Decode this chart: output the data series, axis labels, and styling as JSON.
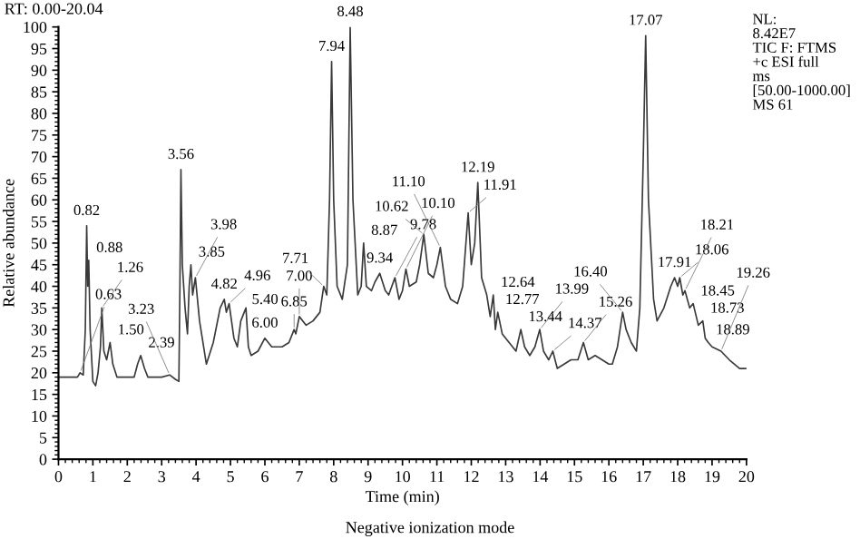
{
  "chart_data": {
    "type": "line",
    "xlabel": "Time (min)",
    "ylabel": "Relative abundance",
    "xlim": [
      0,
      20
    ],
    "ylim": [
      0,
      100
    ],
    "xticks": [
      0,
      1,
      2,
      3,
      4,
      5,
      6,
      7,
      8,
      9,
      10,
      11,
      12,
      13,
      14,
      15,
      16,
      17,
      18,
      19,
      20
    ],
    "yticks": [
      0,
      5,
      10,
      15,
      20,
      25,
      30,
      35,
      40,
      45,
      50,
      55,
      60,
      65,
      70,
      75,
      80,
      85,
      90,
      95,
      100
    ],
    "grid": false,
    "legend": false,
    "marker": "none",
    "line_style": "solid",
    "series": [
      {
        "color": "#3a3a3a",
        "x": [
          0,
          0.3,
          0.55,
          0.63,
          0.72,
          0.78,
          0.82,
          0.85,
          0.88,
          0.92,
          1.0,
          1.08,
          1.15,
          1.22,
          1.26,
          1.32,
          1.4,
          1.5,
          1.58,
          1.7,
          2.0,
          2.2,
          2.3,
          2.39,
          2.5,
          2.6,
          2.8,
          3.0,
          3.23,
          3.4,
          3.5,
          3.53,
          3.56,
          3.6,
          3.68,
          3.75,
          3.8,
          3.85,
          3.9,
          3.98,
          4.1,
          4.3,
          4.5,
          4.7,
          4.82,
          4.88,
          4.96,
          5.1,
          5.2,
          5.3,
          5.4,
          5.45,
          5.52,
          5.6,
          5.8,
          6.0,
          6.2,
          6.5,
          6.7,
          6.85,
          6.9,
          7.0,
          7.2,
          7.4,
          7.6,
          7.71,
          7.8,
          7.88,
          7.94,
          8.0,
          8.1,
          8.25,
          8.4,
          8.48,
          8.56,
          8.7,
          8.8,
          8.87,
          8.95,
          9.1,
          9.2,
          9.34,
          9.5,
          9.6,
          9.78,
          9.9,
          10.0,
          10.1,
          10.2,
          10.4,
          10.5,
          10.62,
          10.75,
          10.9,
          11.0,
          11.1,
          11.25,
          11.4,
          11.6,
          11.75,
          11.91,
          12.0,
          12.1,
          12.19,
          12.3,
          12.45,
          12.55,
          12.64,
          12.7,
          12.77,
          12.9,
          13.1,
          13.3,
          13.44,
          13.55,
          13.7,
          13.85,
          13.99,
          14.1,
          14.25,
          14.37,
          14.5,
          14.7,
          14.9,
          15.1,
          15.26,
          15.4,
          15.6,
          15.8,
          16.0,
          16.1,
          16.25,
          16.4,
          16.5,
          16.65,
          16.8,
          16.9,
          17.0,
          17.07,
          17.15,
          17.3,
          17.4,
          17.6,
          17.8,
          17.91,
          18.0,
          18.06,
          18.15,
          18.21,
          18.35,
          18.45,
          18.6,
          18.73,
          18.8,
          18.89,
          19.0,
          19.26,
          19.5,
          19.8,
          20.0
        ],
        "values": [
          19,
          19,
          19,
          20,
          19.5,
          30,
          54,
          40,
          46,
          30,
          18,
          17,
          20,
          26,
          35,
          25,
          23,
          27,
          22,
          19,
          19,
          19,
          22,
          24,
          21,
          19,
          19,
          19,
          19.5,
          18.5,
          18,
          40,
          67,
          45,
          35,
          29,
          40,
          45,
          38,
          42,
          32,
          22,
          27,
          35,
          37,
          34,
          36,
          28,
          26,
          32,
          34,
          35,
          26,
          24,
          25,
          28,
          26,
          26,
          27,
          30,
          29,
          33,
          31,
          32,
          34,
          40,
          38,
          60,
          92,
          60,
          40,
          37,
          45,
          100,
          60,
          38,
          40,
          50,
          40,
          39,
          41,
          43,
          39,
          38,
          42,
          37,
          39,
          44,
          40,
          41,
          45,
          52,
          43,
          42,
          45,
          49,
          40,
          37,
          36,
          40,
          57,
          45,
          50,
          64,
          42,
          38,
          33,
          38,
          30,
          34,
          29,
          27,
          25,
          30,
          26,
          24,
          26,
          30,
          25,
          23,
          25,
          21,
          22,
          23,
          23,
          27,
          23,
          24,
          23,
          22,
          22,
          26,
          34,
          30,
          27,
          25,
          35,
          70,
          98,
          60,
          37,
          32,
          35,
          40,
          42,
          40,
          42,
          38,
          39,
          35,
          36,
          31,
          32,
          28,
          27,
          26,
          25,
          23,
          21,
          21
        ]
      }
    ],
    "annotations": [
      "RT: 0.00-20.04",
      "NL:\n8.42E7\nTIC F: FTMS\n+c ESI full\nms\n[50.00-1000.00]\nMS 61",
      "Negative ionization mode",
      {
        "text": "0.63",
        "x": 0.63,
        "y": 20
      },
      {
        "text": "0.82",
        "x": 0.82,
        "y": 54
      },
      {
        "text": "0.88",
        "x": 0.88,
        "y": 46
      },
      {
        "text": "1.26",
        "x": 1.26,
        "y": 35
      },
      {
        "text": "1.50",
        "x": 1.5,
        "y": 27
      },
      {
        "text": "2.39",
        "x": 2.39,
        "y": 24
      },
      {
        "text": "3.23",
        "x": 3.23,
        "y": 19.5
      },
      {
        "text": "3.56",
        "x": 3.56,
        "y": 67
      },
      {
        "text": "3.85",
        "x": 3.85,
        "y": 45
      },
      {
        "text": "3.98",
        "x": 3.98,
        "y": 42
      },
      {
        "text": "4.82",
        "x": 4.82,
        "y": 37
      },
      {
        "text": "4.96",
        "x": 4.96,
        "y": 36
      },
      {
        "text": "5.40",
        "x": 5.4,
        "y": 34
      },
      {
        "text": "6.00",
        "x": 6.0,
        "y": 28
      },
      {
        "text": "6.85",
        "x": 6.85,
        "y": 30
      },
      {
        "text": "7.00",
        "x": 7.0,
        "y": 33
      },
      {
        "text": "7.71",
        "x": 7.71,
        "y": 40
      },
      {
        "text": "7.94",
        "x": 7.94,
        "y": 92
      },
      {
        "text": "8.48",
        "x": 8.48,
        "y": 100
      },
      {
        "text": "8.87",
        "x": 8.87,
        "y": 50
      },
      {
        "text": "9.34",
        "x": 9.34,
        "y": 43
      },
      {
        "text": "9.78",
        "x": 9.78,
        "y": 42
      },
      {
        "text": "10.10",
        "x": 10.1,
        "y": 44
      },
      {
        "text": "10.62",
        "x": 10.62,
        "y": 52
      },
      {
        "text": "11.10",
        "x": 11.1,
        "y": 49
      },
      {
        "text": "11.91",
        "x": 11.91,
        "y": 57
      },
      {
        "text": "12.19",
        "x": 12.19,
        "y": 64
      },
      {
        "text": "12.64",
        "x": 12.64,
        "y": 38
      },
      {
        "text": "12.77",
        "x": 12.77,
        "y": 34
      },
      {
        "text": "13.44",
        "x": 13.44,
        "y": 30
      },
      {
        "text": "13.99",
        "x": 13.99,
        "y": 30
      },
      {
        "text": "14.37",
        "x": 14.37,
        "y": 25
      },
      {
        "text": "15.26",
        "x": 15.26,
        "y": 27
      },
      {
        "text": "16.40",
        "x": 16.4,
        "y": 34
      },
      {
        "text": "17.07",
        "x": 17.07,
        "y": 98
      },
      {
        "text": "17.91",
        "x": 17.91,
        "y": 42
      },
      {
        "text": "18.06",
        "x": 18.06,
        "y": 42
      },
      {
        "text": "18.21",
        "x": 18.21,
        "y": 39
      },
      {
        "text": "18.45",
        "x": 18.45,
        "y": 36
      },
      {
        "text": "18.73",
        "x": 18.73,
        "y": 32
      },
      {
        "text": "18.89",
        "x": 18.89,
        "y": 27
      },
      {
        "text": "19.26",
        "x": 19.26,
        "y": 25
      }
    ]
  }
}
